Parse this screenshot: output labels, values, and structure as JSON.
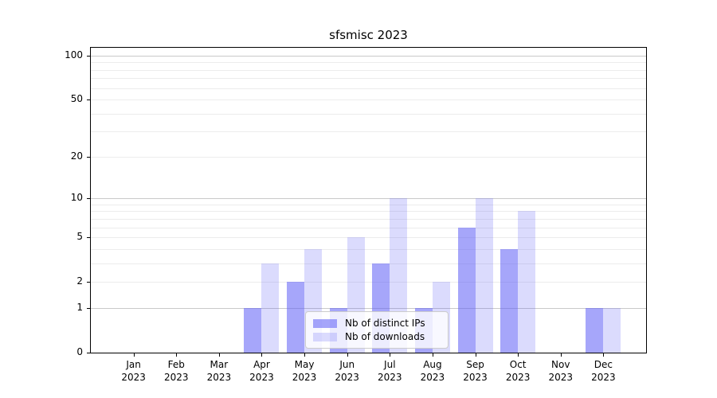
{
  "title": "sfsmisc 2023",
  "legend": {
    "items": [
      {
        "label": "Nb of distinct IPs",
        "color": "rgba(92,92,245,0.55)"
      },
      {
        "label": "Nb of downloads",
        "color": "rgba(92,92,245,0.22)"
      }
    ]
  },
  "chart_data": {
    "type": "bar",
    "title": "sfsmisc 2023",
    "categories": [
      "Jan",
      "Feb",
      "Mar",
      "Apr",
      "May",
      "Jun",
      "Jul",
      "Aug",
      "Sep",
      "Oct",
      "Nov",
      "Dec"
    ],
    "category_year": "2023",
    "series": [
      {
        "name": "Nb of distinct IPs",
        "color": "rgba(92,92,245,0.55)",
        "values": [
          0,
          0,
          0,
          1,
          2,
          1,
          3,
          1,
          6,
          4,
          0,
          1
        ]
      },
      {
        "name": "Nb of downloads",
        "color": "rgba(92,92,245,0.22)",
        "values": [
          0,
          0,
          0,
          3,
          4,
          5,
          10,
          2,
          10,
          8,
          0,
          1
        ]
      }
    ],
    "xlabel": "",
    "ylabel": "",
    "yscale": "log1p",
    "yticks": [
      0,
      1,
      2,
      5,
      10,
      20,
      50,
      100
    ],
    "ylim": [
      0,
      113
    ],
    "grid": {
      "major": [
        1,
        10,
        100
      ],
      "minor": [
        2,
        3,
        4,
        5,
        6,
        7,
        8,
        9,
        20,
        30,
        40,
        50,
        60,
        70,
        80,
        90
      ],
      "major_color": "#c9c9c9",
      "minor_color": "#ececec"
    },
    "legend_position": "lower center"
  }
}
